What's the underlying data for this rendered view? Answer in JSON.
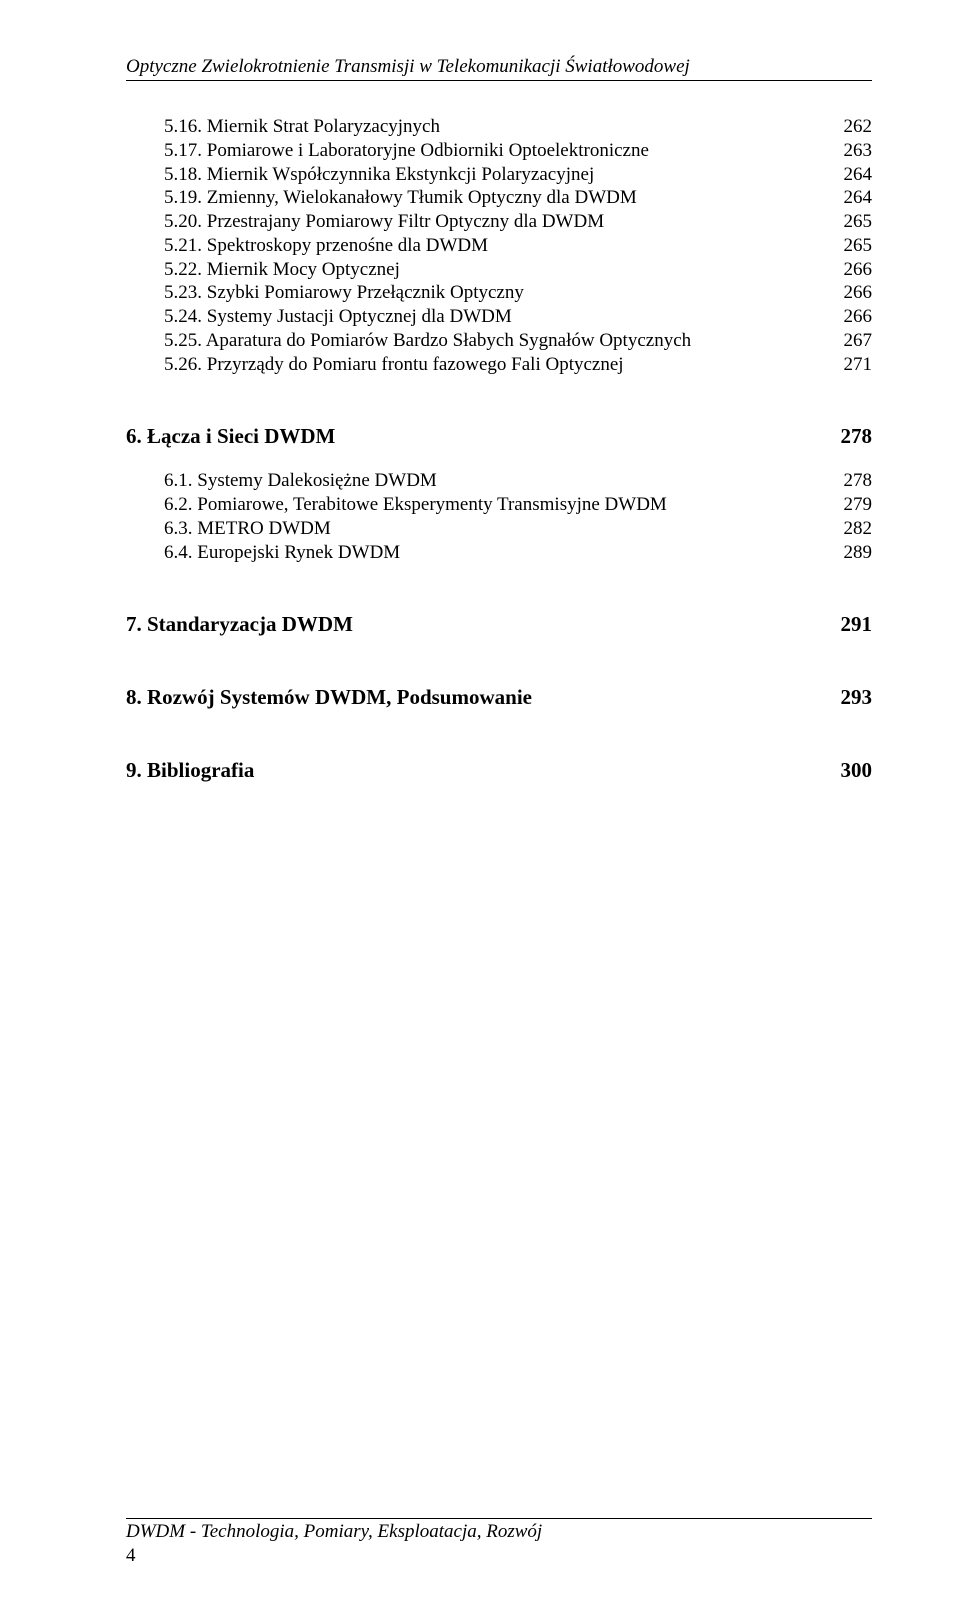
{
  "header": {
    "title": "Optyczne Zwielokrotnienie Transmisji w Telekomunikacji Światłowodowej"
  },
  "toc5": [
    {
      "label": "5.16. Miernik Strat Polaryzacyjnych",
      "page": "262"
    },
    {
      "label": "5.17. Pomiarowe i Laboratoryjne Odbiorniki Optoelektroniczne",
      "page": "263"
    },
    {
      "label": "5.18. Miernik Współczynnika Ekstynkcji Polaryzacyjnej",
      "page": "264"
    },
    {
      "label": "5.19. Zmienny, Wielokanałowy  Tłumik Optyczny dla DWDM",
      "page": "264"
    },
    {
      "label": "5.20. Przestrajany Pomiarowy Filtr Optyczny dla DWDM",
      "page": "265"
    },
    {
      "label": "5.21. Spektroskopy przenośne dla DWDM",
      "page": "265"
    },
    {
      "label": "5.22. Miernik Mocy Optycznej",
      "page": "266"
    },
    {
      "label": "5.23. Szybki Pomiarowy Przełącznik Optyczny",
      "page": "266"
    },
    {
      "label": "5.24. Systemy Justacji Optycznej dla DWDM",
      "page": "266"
    },
    {
      "label": "5.25. Aparatura do Pomiarów Bardzo Słabych Sygnałów Optycznych",
      "page": "267"
    },
    {
      "label": "5.26. Przyrządy do Pomiaru frontu fazowego Fali Optycznej",
      "page": "271"
    }
  ],
  "section6": {
    "heading": "6. Łącza i Sieci DWDM",
    "page": "278",
    "items": [
      {
        "label": "6.1. Systemy Dalekosiężne DWDM",
        "page": "278"
      },
      {
        "label": "6.2. Pomiarowe, Terabitowe Eksperymenty Transmisyjne DWDM",
        "page": "279"
      },
      {
        "label": "6.3. METRO DWDM",
        "page": "282"
      },
      {
        "label": "6.4. Europejski Rynek DWDM",
        "page": "289"
      }
    ]
  },
  "section7": {
    "heading": "7. Standaryzacja DWDM",
    "page": "291"
  },
  "section8": {
    "heading": "8. Rozwój Systemów DWDM, Podsumowanie",
    "page": "293"
  },
  "section9": {
    "heading": "9. Bibliografia",
    "page": "300"
  },
  "footer": {
    "text": "DWDM -  Technologia, Pomiary, Eksploatacja, Rozwój",
    "pagenum": "4"
  }
}
